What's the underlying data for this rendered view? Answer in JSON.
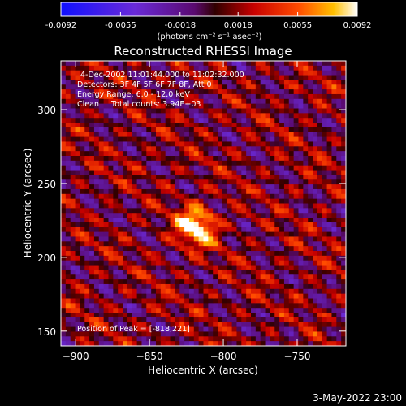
{
  "chart_data": {
    "type": "heatmap",
    "title": "Reconstructed RHESSI Image",
    "xlabel": "Heliocentric X (arcsec)",
    "ylabel": "Heliocentric Y (arcsec)",
    "xlim": [
      -910,
      -717
    ],
    "ylim": [
      140,
      333
    ],
    "x_ticks": [
      -900,
      -850,
      -800,
      -750
    ],
    "y_ticks": [
      150,
      200,
      250,
      300
    ],
    "colorbar": {
      "range": [
        -0.0092,
        0.0092
      ],
      "ticks": [
        -0.0092,
        -0.0055,
        -0.0018,
        0.0018,
        0.0055,
        0.0092
      ],
      "tick_labels": [
        "-0.0092",
        "-0.0055",
        "-0.0018",
        "0.0018",
        "0.0055",
        "0.0092"
      ],
      "unit_label": "(photons cm⁻² s⁻¹ asec⁻²)"
    },
    "peak": [
      -818,
      221
    ],
    "annotations": {
      "time": "4-Dec-2002 11:01:44.000 to 11:02:32.000",
      "detectors": "Detectors: 3F 4F 5F 6F 7F 8F, Att 0",
      "energy": "Energy Range: 6.0 - 12.0 keV",
      "clean": "Clean     Total counts: 3.94E+03",
      "peak_text": "Position of Peak = [-818,221]"
    },
    "footer_date": "3-May-2022 23:00"
  }
}
